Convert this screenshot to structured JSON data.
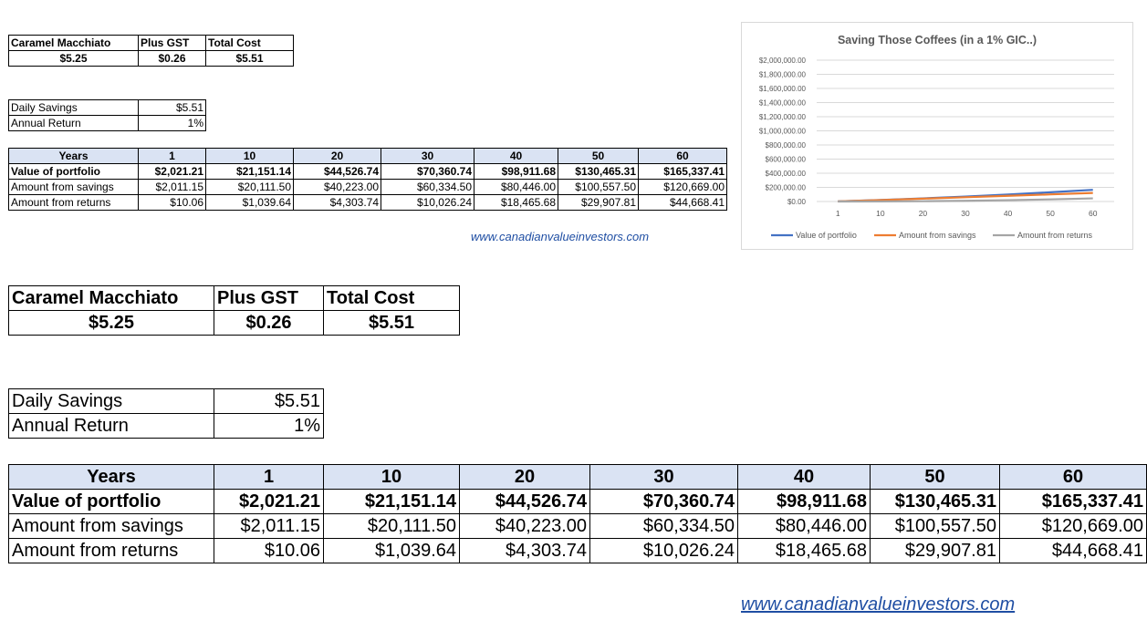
{
  "cost_table": {
    "headers": [
      "Caramel Macchiato",
      "Plus GST",
      "Total Cost"
    ],
    "values": [
      "$5.25",
      "$0.26",
      "$5.51"
    ]
  },
  "savings_table": {
    "rows": [
      {
        "label": "Daily Savings",
        "value": "$5.51"
      },
      {
        "label": "Annual Return",
        "value": "1%"
      }
    ]
  },
  "growth_table": {
    "corner": "Years",
    "years": [
      "1",
      "10",
      "20",
      "30",
      "40",
      "50",
      "60"
    ],
    "rows": [
      {
        "label": "Value of portfolio",
        "values": [
          "$2,021.21",
          "$21,151.14",
          "$44,526.74",
          "$70,360.74",
          "$98,911.68",
          "$130,465.31",
          "$165,337.41"
        ]
      },
      {
        "label": "Amount from savings",
        "values": [
          "$2,011.15",
          "$20,111.50",
          "$40,223.00",
          "$60,334.50",
          "$80,446.00",
          "$100,557.50",
          "$120,669.00"
        ]
      },
      {
        "label": "Amount from returns",
        "values": [
          "$10.06",
          "$1,039.64",
          "$4,303.74",
          "$10,026.24",
          "$18,465.68",
          "$29,907.81",
          "$44,668.41"
        ]
      }
    ]
  },
  "website": "www.canadianvalueinvestors.com",
  "chart_data": {
    "type": "line",
    "title": "Saving Those Coffees (in a 1% GIC..)",
    "categories": [
      "1",
      "10",
      "20",
      "30",
      "40",
      "50",
      "60"
    ],
    "ylim": [
      0,
      2000000
    ],
    "yticks": [
      "$0.00",
      "$200,000.00",
      "$400,000.00",
      "$600,000.00",
      "$800,000.00",
      "$1,000,000.00",
      "$1,200,000.00",
      "$1,400,000.00",
      "$1,600,000.00",
      "$1,800,000.00",
      "$2,000,000.00"
    ],
    "grid": true,
    "legend": "bottom",
    "series": [
      {
        "name": "Value of portfolio",
        "color": "#4472c4",
        "values": [
          2021.21,
          21151.14,
          44526.74,
          70360.74,
          98911.68,
          130465.31,
          165337.41
        ]
      },
      {
        "name": "Amount from savings",
        "color": "#ed7d31",
        "values": [
          2011.15,
          20111.5,
          40223.0,
          60334.5,
          80446.0,
          100557.5,
          120669.0
        ]
      },
      {
        "name": "Amount from returns",
        "color": "#a5a5a5",
        "values": [
          10.06,
          1039.64,
          4303.74,
          10026.24,
          18465.68,
          29907.81,
          44668.41
        ]
      }
    ]
  }
}
